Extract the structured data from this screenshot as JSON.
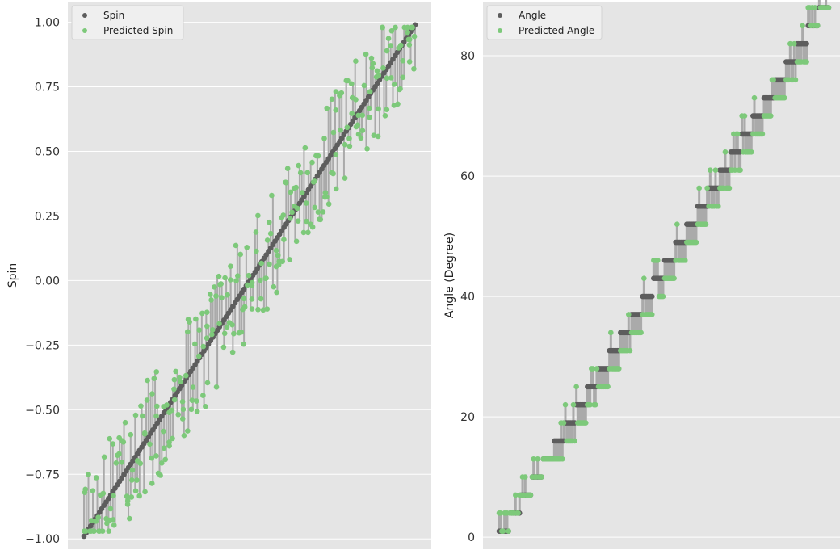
{
  "chart_data": [
    {
      "type": "scatter",
      "subtitle": "",
      "xlabel": "",
      "ylabel": "Spin",
      "ylim": [
        -1.04,
        1.08
      ],
      "yticks": [
        "1.00",
        "0.75",
        "0.50",
        "0.25",
        "0.00",
        "−0.25",
        "−0.50",
        "−0.75",
        "−1.00"
      ],
      "ytick_values": [
        1.0,
        0.75,
        0.5,
        0.25,
        0.0,
        -0.25,
        -0.5,
        -0.75,
        -1.0
      ],
      "grid": true,
      "x_axis": "sample index sorted by true value (no tick labels)",
      "legend": {
        "placement": "top-left",
        "entries": [
          "Spin",
          "Predicted Spin"
        ]
      },
      "series": [
        {
          "name": "Spin",
          "color": "#5d5d5d",
          "x_range": [
            0,
            1
          ],
          "y_start": -0.99,
          "y_end": 0.99,
          "n_points": 150
        },
        {
          "name": "Predicted Spin",
          "color": "#7dc97a",
          "x_range": [
            0,
            1
          ],
          "y_start": -0.96,
          "y_end": 0.97,
          "n_points": 150,
          "typical_offset_range": [
            -0.3,
            0.3
          ]
        }
      ],
      "connector_color": "#aaaaaa"
    },
    {
      "type": "scatter",
      "subtitle": "",
      "xlabel": "",
      "ylabel": "Angle (Degree)",
      "ylim": [
        -2,
        89
      ],
      "yticks": [
        "80",
        "60",
        "40",
        "20",
        "0"
      ],
      "ytick_values": [
        80,
        60,
        40,
        20,
        0
      ],
      "grid": true,
      "x_axis": "sample index sorted by true value (no tick labels)",
      "legend": {
        "placement": "top-left",
        "entries": [
          "Angle",
          "Predicted Angle"
        ]
      },
      "series": [
        {
          "name": "Angle",
          "color": "#5d5d5d",
          "levels": [
            1,
            4,
            7,
            10,
            13,
            16,
            19,
            22,
            25,
            28,
            31,
            34,
            37,
            40,
            43,
            46,
            49,
            52,
            55,
            58,
            61,
            64,
            67,
            70,
            73,
            76,
            79,
            82,
            85,
            88
          ]
        },
        {
          "name": "Predicted Angle",
          "color": "#7dc97a",
          "levels": [
            1,
            4,
            7,
            10,
            13,
            13,
            16,
            19,
            22,
            25,
            28,
            31,
            34,
            37,
            40,
            43,
            46,
            49,
            52,
            55,
            58,
            61,
            64,
            67,
            70,
            73,
            76,
            79,
            82,
            88
          ]
        }
      ],
      "connector_color": "#aaaaaa"
    }
  ]
}
